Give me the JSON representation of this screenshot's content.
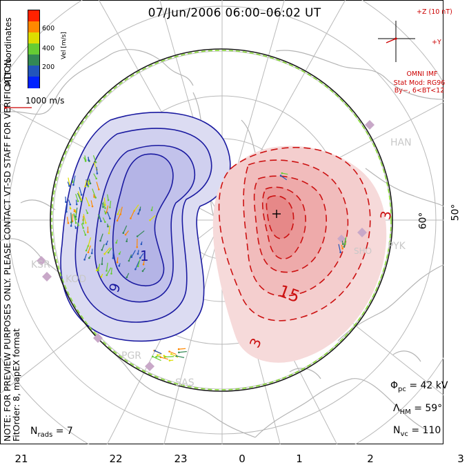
{
  "title": "07/Jun/2006 06:00–06:02 UT",
  "side_note": {
    "line1": "NOTE: FOR PREVIEW PURPOSES ONLY. PLEASE CONTACT VT-SD STAFF FOR VERIFICATION.",
    "line2": "FitOrder: 8, mapEX format",
    "line3": "MLT coordinates"
  },
  "colorbar": {
    "label": "Vel [m/s]",
    "ticks": [
      "600",
      "400",
      "200"
    ],
    "colors": [
      "#ff2200",
      "#ff8800",
      "#dddd00",
      "#66cc33",
      "#338855",
      "#2255bb",
      "#0022ff"
    ]
  },
  "reference_vector": {
    "label": "1000 m/s",
    "color": "#cc0000"
  },
  "imf": {
    "z_label": "+Z (10 nT)",
    "y_label": "+Y",
    "source": "OMNI IMF",
    "model": "Stat Mod: RG96",
    "condition": "By−, 6<BT<12",
    "color": "#cc0000"
  },
  "mlt_labels": [
    "21",
    "22",
    "23",
    "0",
    "1",
    "2",
    "3"
  ],
  "latitude_labels": [
    "60°",
    "50°"
  ],
  "stations": [
    "HAN",
    "KSR",
    "KOD",
    "PGR",
    "SAS",
    "PYK"
  ],
  "station_extra": "SHO",
  "contour_labels": {
    "negative": [
      "9",
      "1"
    ],
    "positive": [
      "3",
      "15",
      "3"
    ]
  },
  "stats": {
    "phi_symbol": "Φ",
    "phi_sub": "pc",
    "phi_value": "= 42 kV",
    "lambda_symbol": "Λ",
    "lambda_sub": "HM",
    "lambda_value": "= 59°",
    "n_symbol": "N",
    "nvc_sub": "vc",
    "nvc_value": "= 110",
    "nrads_sub": "rads",
    "nrads_value": "= 7"
  },
  "colors": {
    "negative_fill": "#ccccee",
    "negative_line": "#1a1aa0",
    "positive_fill": "#f6d6d6",
    "positive_line": "#cc1111",
    "coastline": "#b4b4b4",
    "grid": "#b9b9b9",
    "station": "#c8a8c8"
  }
}
